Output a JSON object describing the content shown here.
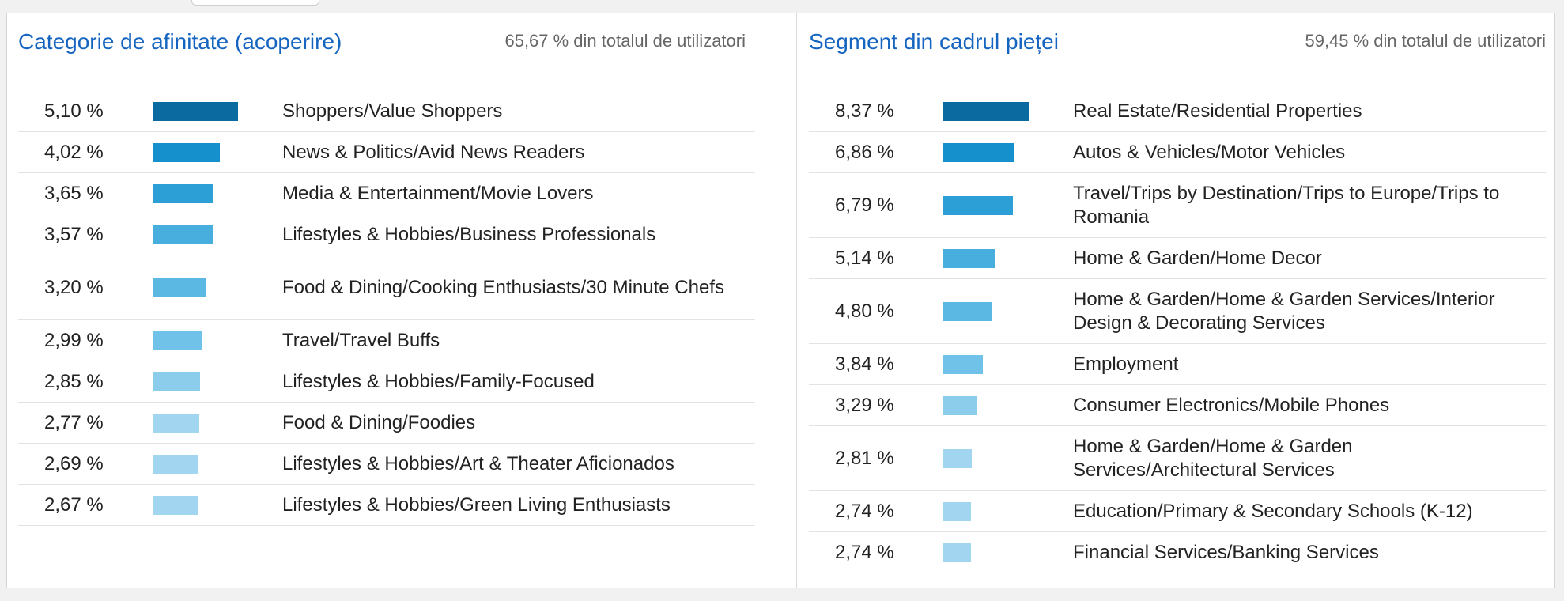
{
  "colors": {
    "title": "#1565c0",
    "bar_shades": [
      "#0b6ba0",
      "#1590cc",
      "#2b9fd6",
      "#47aede",
      "#5bb8e3",
      "#70c2e8",
      "#8ccdec",
      "#a2d6f0"
    ]
  },
  "left": {
    "title": "Categorie de afinitate (acoperire)",
    "subtitle": "65,67 % din totalul de utilizatori",
    "rows": [
      {
        "pct": "5,10 %",
        "value": 5.1,
        "label": "Shoppers/Value Shoppers"
      },
      {
        "pct": "4,02 %",
        "value": 4.02,
        "label": "News & Politics/Avid News Readers"
      },
      {
        "pct": "3,65 %",
        "value": 3.65,
        "label": "Media & Entertainment/Movie Lovers"
      },
      {
        "pct": "3,57 %",
        "value": 3.57,
        "label": "Lifestyles & Hobbies/Business Professionals"
      },
      {
        "pct": "3,20 %",
        "value": 3.2,
        "label": "Food & Dining/Cooking Enthusiasts/30 Minute Chefs"
      },
      {
        "pct": "2,99 %",
        "value": 2.99,
        "label": "Travel/Travel Buffs"
      },
      {
        "pct": "2,85 %",
        "value": 2.85,
        "label": "Lifestyles & Hobbies/Family-Focused"
      },
      {
        "pct": "2,77 %",
        "value": 2.77,
        "label": "Food & Dining/Foodies"
      },
      {
        "pct": "2,69 %",
        "value": 2.69,
        "label": "Lifestyles & Hobbies/Art & Theater Aficionados"
      },
      {
        "pct": "2,67 %",
        "value": 2.67,
        "label": "Lifestyles & Hobbies/Green Living Enthusiasts"
      }
    ]
  },
  "right": {
    "title": "Segment din cadrul pieței",
    "subtitle": "59,45 % din totalul de utilizatori",
    "rows": [
      {
        "pct": "8,37 %",
        "value": 8.37,
        "label": "Real Estate/Residential Properties"
      },
      {
        "pct": "6,86 %",
        "value": 6.86,
        "label": "Autos & Vehicles/Motor Vehicles"
      },
      {
        "pct": "6,79 %",
        "value": 6.79,
        "label": "Travel/Trips by Destination/Trips to Europe/Trips to Romania"
      },
      {
        "pct": "5,14 %",
        "value": 5.14,
        "label": "Home & Garden/Home Decor"
      },
      {
        "pct": "4,80 %",
        "value": 4.8,
        "label": "Home & Garden/Home & Garden Services/Interior Design & Decorating Services"
      },
      {
        "pct": "3,84 %",
        "value": 3.84,
        "label": "Employment"
      },
      {
        "pct": "3,29 %",
        "value": 3.29,
        "label": "Consumer Electronics/Mobile Phones"
      },
      {
        "pct": "2,81 %",
        "value": 2.81,
        "label": "Home & Garden/Home & Garden Services/Architectural Services"
      },
      {
        "pct": "2,74 %",
        "value": 2.74,
        "label": "Education/Primary & Secondary Schools (K-12)"
      },
      {
        "pct": "2,74 %",
        "value": 2.74,
        "label": "Financial Services/Banking Services"
      }
    ]
  }
}
